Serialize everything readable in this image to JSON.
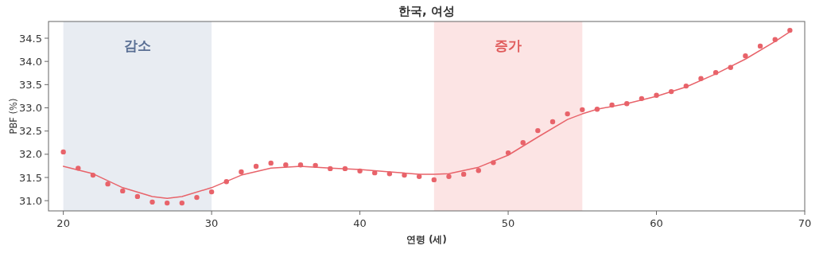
{
  "chart_data": {
    "type": "scatter",
    "title": "한국, 여성",
    "xlabel": "연령 (세)",
    "ylabel": "PBF (%)",
    "xlim": [
      19,
      70
    ],
    "ylim": [
      30.78,
      34.86
    ],
    "xticks": [
      20,
      30,
      40,
      50,
      60,
      70
    ],
    "yticks": [
      {
        "value": 31,
        "label": "31.0"
      },
      {
        "value": 31.5,
        "label": "31.5"
      },
      {
        "value": 32,
        "label": "32.0"
      },
      {
        "value": 32.5,
        "label": "32.5"
      },
      {
        "value": 33,
        "label": "33.0"
      },
      {
        "value": 33.5,
        "label": "33.5"
      },
      {
        "value": 34,
        "label": "34.0"
      },
      {
        "value": 34.5,
        "label": "34.5"
      }
    ],
    "bands": [
      {
        "axis": "x",
        "from": 20,
        "to": 30,
        "label": "감소",
        "color": "#e8ecf2"
      },
      {
        "axis": "x",
        "from": 45,
        "to": 55,
        "label": "증가",
        "color": "#fce4e4"
      }
    ],
    "series": [
      {
        "marker": "circle",
        "color": "#e8636a",
        "x": [
          20,
          21,
          22,
          23,
          24,
          25,
          26,
          27,
          28,
          29,
          30,
          31,
          32,
          33,
          34,
          35,
          36,
          37,
          38,
          39,
          40,
          41,
          42,
          43,
          44,
          45,
          46,
          47,
          48,
          49,
          50,
          51,
          52,
          53,
          54,
          55,
          56,
          57,
          58,
          59,
          60,
          61,
          62,
          63,
          64,
          65,
          66,
          67,
          68,
          69
        ],
        "values": [
          32.05,
          31.7,
          31.55,
          31.36,
          31.21,
          31.09,
          30.97,
          30.95,
          30.95,
          31.07,
          31.19,
          31.41,
          31.62,
          31.74,
          31.81,
          31.77,
          31.77,
          31.76,
          31.69,
          31.69,
          31.64,
          31.6,
          31.58,
          31.55,
          31.52,
          31.45,
          31.52,
          31.57,
          31.65,
          31.82,
          32.03,
          32.25,
          32.51,
          32.7,
          32.87,
          32.96,
          32.97,
          33.06,
          33.09,
          33.2,
          33.27,
          33.35,
          33.47,
          33.63,
          33.76,
          33.87,
          34.12,
          34.33,
          34.47,
          34.67
        ]
      },
      {
        "type": "line",
        "color": "#e8636a",
        "x": [
          20,
          22,
          24,
          26,
          27,
          28,
          30,
          32,
          34,
          36,
          38,
          40,
          42,
          44,
          45,
          46,
          48,
          50,
          52,
          54,
          55,
          56,
          58,
          60,
          62,
          64,
          66,
          68,
          69
        ],
        "values": [
          31.74,
          31.58,
          31.28,
          31.09,
          31.05,
          31.09,
          31.28,
          31.55,
          31.7,
          31.74,
          31.7,
          31.67,
          31.62,
          31.57,
          31.57,
          31.58,
          31.72,
          31.98,
          32.37,
          32.75,
          32.87,
          32.97,
          33.09,
          33.25,
          33.45,
          33.73,
          34.05,
          34.43,
          34.64
        ]
      }
    ]
  }
}
